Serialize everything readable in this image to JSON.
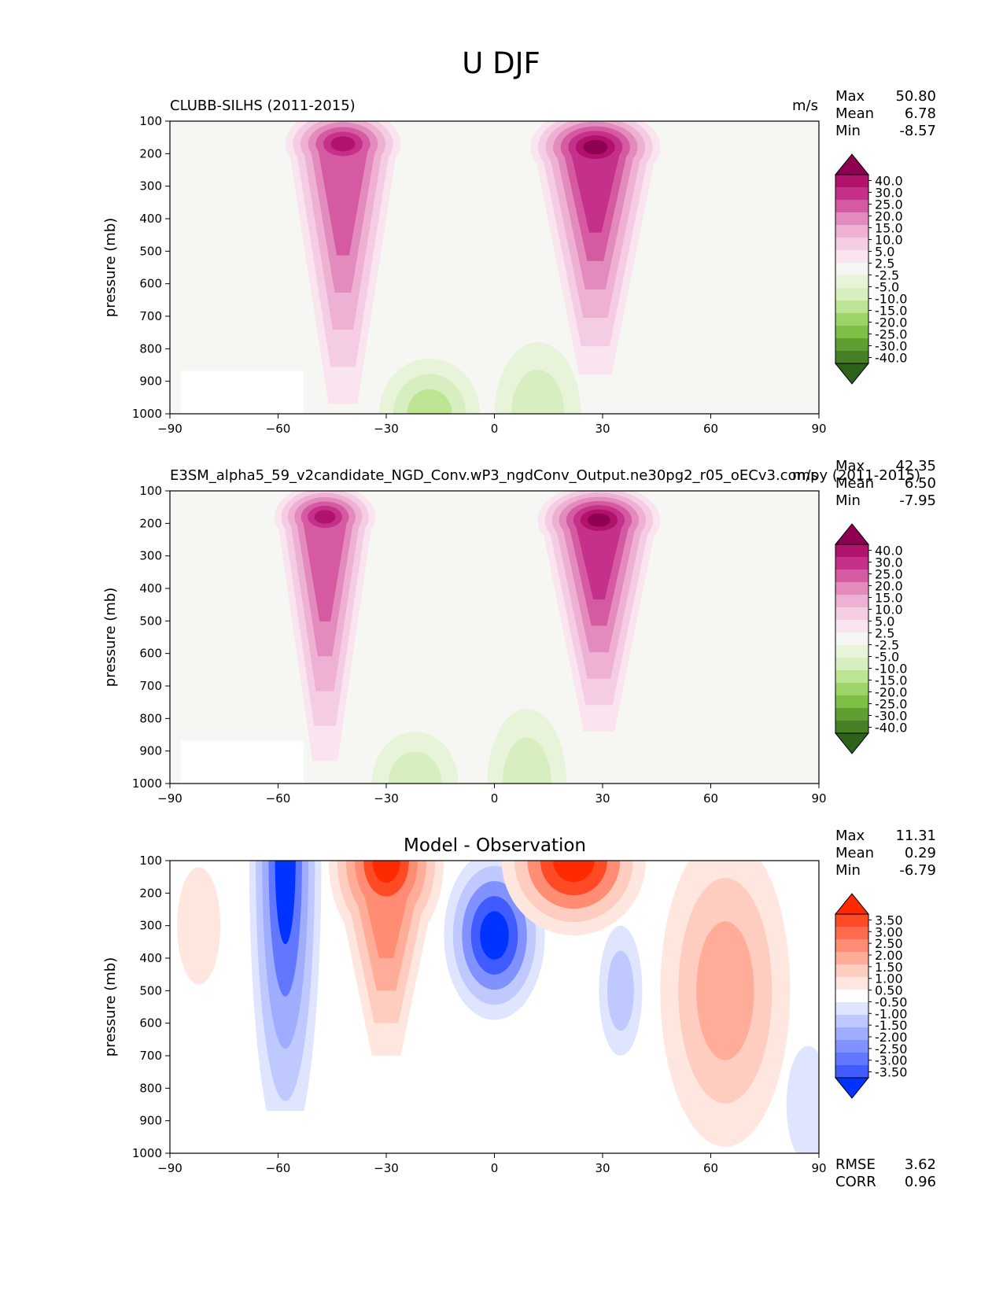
{
  "figure_title": "U DJF",
  "chart_data": [
    {
      "type": "heatmap",
      "title_left": "CLUBB-SILHS (2011-2015)",
      "title_right": "m/s",
      "title_center": "",
      "ylabel": "pressure (mb)",
      "xlim": [
        -90,
        90
      ],
      "ylim": [
        100,
        1000
      ],
      "xticks": [
        "−90",
        "−60",
        "−30",
        "0",
        "30",
        "60",
        "90"
      ],
      "yticks": [
        "100",
        "200",
        "300",
        "400",
        "500",
        "600",
        "700",
        "800",
        "900",
        "1000"
      ],
      "stats": [
        {
          "label": "Max",
          "value": "50.80"
        },
        {
          "label": "Mean",
          "value": "6.78"
        },
        {
          "label": "Min",
          "value": "-8.57"
        }
      ],
      "colorbar": {
        "labels": [
          "40.0",
          "30.0",
          "25.0",
          "20.0",
          "15.0",
          "10.0",
          "5.0",
          "2.5",
          "-2.5",
          "-5.0",
          "-10.0",
          "-15.0",
          "-20.0",
          "-25.0",
          "-30.0",
          "-40.0"
        ],
        "colors": [
          "#8e0152",
          "#b0126c",
          "#c5318a",
          "#d65aa2",
          "#e38bbd",
          "#eeb0d3",
          "#f4cde4",
          "#f9e4ef",
          "#f5f5f3",
          "#e8f4da",
          "#d7efc0",
          "#bde493",
          "#9ed36a",
          "#7ebf45",
          "#5f9f31",
          "#457f26",
          "#2c6219"
        ]
      },
      "background": "#f6f6f3",
      "blobs": [
        {
          "lat": -42,
          "p": 170,
          "rlat": 16,
          "rp": 110,
          "tail": 800,
          "colors": [
            "#f9e4ef",
            "#f4cde4",
            "#eeb0d3",
            "#e38bbd",
            "#d65aa2",
            "#c5318a",
            "#b0126c"
          ]
        },
        {
          "lat": 28,
          "p": 180,
          "rlat": 18,
          "rp": 120,
          "tail": 700,
          "colors": [
            "#f9e4ef",
            "#f4cde4",
            "#eeb0d3",
            "#e38bbd",
            "#d65aa2",
            "#c5318a",
            "#b0126c",
            "#8e0152"
          ]
        },
        {
          "lat": -18,
          "p": 1000,
          "rlat": 14,
          "rp": 170,
          "tail": 0,
          "colors": [
            "#e8f4da",
            "#d7efc0",
            "#bde493"
          ]
        },
        {
          "lat": 12,
          "p": 1000,
          "rlat": 12,
          "rp": 220,
          "tail": 0,
          "colors": [
            "#e8f4da",
            "#d7efc0"
          ]
        }
      ]
    },
    {
      "type": "heatmap",
      "title_left": "E3SM_alpha5_59_v2candidate_NGD_Conv.wP3_ngdConv_Output.ne30pg2_r05_oECv3.compy (2011-2015)",
      "title_right": "m/s",
      "title_center": "",
      "ylabel": "pressure (mb)",
      "xlim": [
        -90,
        90
      ],
      "ylim": [
        100,
        1000
      ],
      "xticks": [
        "−90",
        "−60",
        "−30",
        "0",
        "30",
        "60",
        "90"
      ],
      "yticks": [
        "100",
        "200",
        "300",
        "400",
        "500",
        "600",
        "700",
        "800",
        "900",
        "1000"
      ],
      "stats": [
        {
          "label": "Max",
          "value": "42.35"
        },
        {
          "label": "Mean",
          "value": "6.50"
        },
        {
          "label": "Min",
          "value": "-7.95"
        }
      ],
      "colorbar": {
        "labels": [
          "40.0",
          "30.0",
          "25.0",
          "20.0",
          "15.0",
          "10.0",
          "5.0",
          "2.5",
          "-2.5",
          "-5.0",
          "-10.0",
          "-15.0",
          "-20.0",
          "-25.0",
          "-30.0",
          "-40.0"
        ],
        "colors": [
          "#8e0152",
          "#b0126c",
          "#c5318a",
          "#d65aa2",
          "#e38bbd",
          "#eeb0d3",
          "#f4cde4",
          "#f9e4ef",
          "#f5f5f3",
          "#e8f4da",
          "#d7efc0",
          "#bde493",
          "#9ed36a",
          "#7ebf45",
          "#5f9f31",
          "#457f26",
          "#2c6219"
        ]
      },
      "background": "#f6f6f3",
      "blobs": [
        {
          "lat": -47,
          "p": 180,
          "rlat": 14,
          "rp": 100,
          "tail": 750,
          "colors": [
            "#f9e4ef",
            "#f4cde4",
            "#eeb0d3",
            "#e38bbd",
            "#d65aa2",
            "#c5318a",
            "#b0126c"
          ]
        },
        {
          "lat": 29,
          "p": 190,
          "rlat": 17,
          "rp": 110,
          "tail": 650,
          "colors": [
            "#f9e4ef",
            "#f4cde4",
            "#eeb0d3",
            "#e38bbd",
            "#d65aa2",
            "#c5318a",
            "#b0126c",
            "#8e0152"
          ]
        },
        {
          "lat": -22,
          "p": 1000,
          "rlat": 12,
          "rp": 160,
          "tail": 0,
          "colors": [
            "#e8f4da",
            "#d7efc0"
          ]
        },
        {
          "lat": 9,
          "p": 1000,
          "rlat": 11,
          "rp": 230,
          "tail": 0,
          "colors": [
            "#e8f4da",
            "#d7efc0"
          ]
        }
      ]
    },
    {
      "type": "heatmap",
      "title_left": "",
      "title_right": "",
      "title_center": "Model - Observation",
      "ylabel": "pressure (mb)",
      "xlim": [
        -90,
        90
      ],
      "ylim": [
        100,
        1000
      ],
      "xticks": [
        "−90",
        "−60",
        "−30",
        "0",
        "30",
        "60",
        "90"
      ],
      "yticks": [
        "100",
        "200",
        "300",
        "400",
        "500",
        "600",
        "700",
        "800",
        "900",
        "1000"
      ],
      "stats": [
        {
          "label": "Max",
          "value": "11.31"
        },
        {
          "label": "Mean",
          "value": "0.29"
        },
        {
          "label": "Min",
          "value": "-6.79"
        }
      ],
      "extra_stats": [
        {
          "label": "RMSE",
          "value": "3.62"
        },
        {
          "label": "CORR",
          "value": "0.96"
        }
      ],
      "colorbar": {
        "labels": [
          "3.50",
          "3.00",
          "2.50",
          "2.00",
          "1.50",
          "1.00",
          "0.50",
          "-0.50",
          "-1.00",
          "-1.50",
          "-2.00",
          "-2.50",
          "-3.00",
          "-3.50"
        ],
        "colors": [
          "#ff2a00",
          "#ff4a26",
          "#ff6b4c",
          "#ff8c73",
          "#ffac99",
          "#ffcdc0",
          "#ffe6df",
          "#ffffff",
          "#dfe4ff",
          "#c0c9ff",
          "#a0adff",
          "#8192ff",
          "#6177ff",
          "#405bff",
          "#0033ff"
        ]
      },
      "background": "#ffffff",
      "blobs": [
        {
          "lat": -58,
          "p": 100,
          "rlat": 10,
          "rp": 900,
          "tail": 0,
          "colors": [
            "#dfe4ff",
            "#c0c9ff",
            "#a0adff",
            "#6177ff",
            "#0033ff"
          ]
        },
        {
          "lat": -30,
          "p": 100,
          "rlat": 16,
          "rp": 280,
          "tail": 600,
          "colors": [
            "#ffe6df",
            "#ffcdc0",
            "#ffac99",
            "#ff8c73",
            "#ff4a26",
            "#ff2a00"
          ]
        },
        {
          "lat": 0,
          "p": 330,
          "rlat": 14,
          "rp": 260,
          "tail": 0,
          "colors": [
            "#dfe4ff",
            "#c0c9ff",
            "#8192ff",
            "#405bff",
            "#0033ff"
          ]
        },
        {
          "lat": 22,
          "p": 100,
          "rlat": 20,
          "rp": 230,
          "tail": 0,
          "colors": [
            "#ffe6df",
            "#ffcdc0",
            "#ff8c73",
            "#ff4a26",
            "#ff2a00"
          ]
        },
        {
          "lat": 64,
          "p": 500,
          "rlat": 18,
          "rp": 480,
          "tail": 0,
          "colors": [
            "#ffe6df",
            "#ffcdc0",
            "#ffac99"
          ]
        },
        {
          "lat": 35,
          "p": 500,
          "rlat": 6,
          "rp": 200,
          "tail": 0,
          "colors": [
            "#dfe4ff",
            "#c0c9ff"
          ]
        },
        {
          "lat": 87,
          "p": 850,
          "rlat": 6,
          "rp": 180,
          "tail": 0,
          "colors": [
            "#dfe4ff"
          ]
        },
        {
          "lat": -82,
          "p": 300,
          "rlat": 6,
          "rp": 180,
          "tail": 0,
          "colors": [
            "#ffe6df"
          ]
        }
      ]
    }
  ]
}
